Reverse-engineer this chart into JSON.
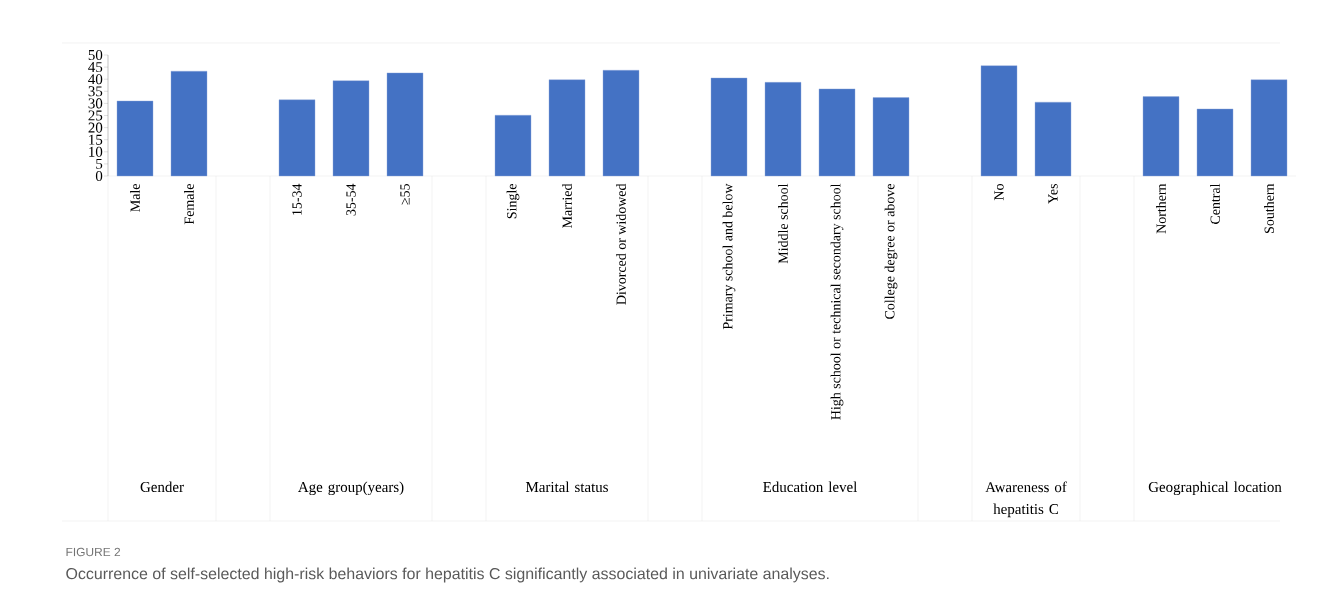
{
  "chart_data": {
    "type": "bar",
    "title": "FIGURE 2",
    "subtitle": "Occurrence of self-selected high-risk behaviors for hepatitis C significantly associated in univariate analyses.",
    "categories": [
      "Male",
      "Female",
      null,
      "15-34",
      "35-54",
      "≥55",
      null,
      "Single",
      "Married",
      "Divorced or widowed",
      null,
      "Primary school and below",
      "Middle school",
      "High school or technical secondary school",
      "College degree or above",
      null,
      "No",
      "Yes",
      null,
      "Northern",
      "Central",
      "Southern"
    ],
    "values": [
      31.0,
      43.3,
      null,
      31.5,
      39.4,
      42.6,
      null,
      25.1,
      39.8,
      43.7,
      null,
      40.5,
      38.7,
      36.0,
      32.4,
      null,
      45.6,
      30.5,
      null,
      32.8,
      27.7,
      39.8
    ],
    "color": "#4472c4",
    "ylim": [
      0,
      50
    ],
    "yticks": [
      0,
      5,
      10,
      15,
      20,
      25,
      30,
      35,
      40,
      45,
      50
    ],
    "annotations": [
      "Gender",
      "Age group(years)",
      "Marital status",
      "Education level",
      "Awareness of hepatitis C",
      "Geographical location"
    ]
  }
}
